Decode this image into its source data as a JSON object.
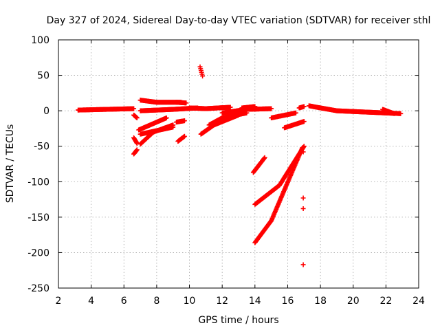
{
  "chart_data": {
    "type": "scatter",
    "title": "Day 327 of 2024, Sidereal Day-to-day VTEC variation (SDTVAR) for receiver sthl",
    "xlabel": "GPS time / hours",
    "ylabel": "SDTVAR / TECUs",
    "xlim": [
      2,
      24
    ],
    "ylim": [
      -250,
      100
    ],
    "xticks": [
      2,
      4,
      6,
      8,
      10,
      12,
      14,
      16,
      18,
      20,
      22,
      24
    ],
    "yticks": [
      -250,
      -200,
      -150,
      -100,
      -50,
      0,
      50,
      100
    ],
    "xtick_labels": [
      "2",
      "4",
      "6",
      "8",
      "10",
      "12",
      "14",
      "16",
      "18",
      "20",
      "22",
      "24"
    ],
    "ytick_labels": [
      "-250",
      "-200",
      "-150",
      "-100",
      "-50",
      "0",
      "50",
      "100"
    ],
    "grid": true,
    "marker": "plus",
    "color": "#ff0000",
    "series": [
      {
        "name": "arc-main-early",
        "segments": [
          [
            3.2,
            1,
            6.6,
            3
          ]
        ]
      },
      {
        "name": "arc-7-10a",
        "segments": [
          [
            7.0,
            15,
            8.0,
            12
          ],
          [
            8.0,
            12,
            9.5,
            12
          ]
        ]
      },
      {
        "name": "arc-7-10b",
        "segments": [
          [
            7.0,
            0,
            9.0,
            2
          ],
          [
            9.0,
            2,
            10.5,
            4
          ]
        ]
      },
      {
        "name": "arc-9-10",
        "segments": [
          [
            9.2,
            12,
            9.8,
            11
          ]
        ]
      },
      {
        "name": "arc-7-down1",
        "segments": [
          [
            6.9,
            -27,
            8.6,
            -10
          ]
        ]
      },
      {
        "name": "arc-7-down2",
        "segments": [
          [
            7.0,
            -33,
            9.0,
            -23
          ]
        ]
      },
      {
        "name": "arc-7-down3",
        "segments": [
          [
            7.0,
            -47,
            7.8,
            -30
          ],
          [
            7.8,
            -30,
            9.0,
            -20
          ]
        ]
      },
      {
        "name": "arc-6-low",
        "segments": [
          [
            6.6,
            -61,
            6.8,
            -55
          ]
        ]
      },
      {
        "name": "arc-6-mid",
        "segments": [
          [
            6.6,
            -38,
            6.8,
            -46
          ]
        ]
      },
      {
        "name": "arc-6-top",
        "segments": [
          [
            6.6,
            -6,
            6.8,
            -10
          ]
        ]
      },
      {
        "name": "arc-9-low",
        "segments": [
          [
            9.3,
            -43,
            9.7,
            -36
          ]
        ]
      },
      {
        "name": "arc-9-mid",
        "segments": [
          [
            9.2,
            -16,
            9.7,
            -14
          ]
        ]
      },
      {
        "name": "spike-10.7",
        "segments": [
          [
            10.65,
            62,
            10.8,
            49
          ]
        ]
      },
      {
        "name": "arc-10-12",
        "segments": [
          [
            10.0,
            4,
            11.0,
            3
          ],
          [
            11.0,
            3,
            12.5,
            5
          ]
        ]
      },
      {
        "name": "arc-11-13a",
        "segments": [
          [
            10.7,
            -33,
            11.5,
            -20
          ],
          [
            11.5,
            -20,
            13.0,
            -6
          ]
        ]
      },
      {
        "name": "arc-11-13b",
        "segments": [
          [
            11.2,
            -20,
            12.0,
            -10
          ],
          [
            12.0,
            -10,
            13.5,
            -3
          ]
        ]
      },
      {
        "name": "arc-12-15",
        "segments": [
          [
            12.0,
            -3,
            13.5,
            2
          ],
          [
            13.5,
            2,
            15.0,
            3
          ]
        ]
      },
      {
        "name": "arc-13-14",
        "segments": [
          [
            13.2,
            4,
            14.0,
            6
          ]
        ]
      },
      {
        "name": "arc-15-16",
        "segments": [
          [
            15.0,
            -10,
            16.5,
            -3
          ]
        ]
      },
      {
        "name": "arc-15-17",
        "segments": [
          [
            15.8,
            -24,
            17.0,
            -15
          ]
        ]
      },
      {
        "name": "arc-16.8",
        "segments": [
          [
            16.7,
            4,
            17.0,
            6
          ]
        ]
      },
      {
        "name": "arc-14-up",
        "segments": [
          [
            13.9,
            -87,
            14.6,
            -66
          ]
        ]
      },
      {
        "name": "arc-14-17a",
        "segments": [
          [
            14.0,
            -132,
            15.5,
            -105
          ],
          [
            15.5,
            -105,
            17.0,
            -50
          ]
        ]
      },
      {
        "name": "arc-14-17b",
        "segments": [
          [
            14.0,
            -186,
            15.0,
            -155
          ],
          [
            15.0,
            -155,
            16.9,
            -52
          ]
        ]
      },
      {
        "name": "isolated-17",
        "points": [
          [
            16.95,
            -58
          ],
          [
            16.95,
            -123
          ],
          [
            16.95,
            -138
          ],
          [
            16.95,
            -217
          ]
        ]
      },
      {
        "name": "arc-late",
        "segments": [
          [
            17.3,
            7,
            19.0,
            0
          ],
          [
            19.0,
            0,
            22.9,
            -4
          ]
        ]
      },
      {
        "name": "arc-22",
        "segments": [
          [
            21.8,
            2,
            22.5,
            -4
          ]
        ]
      }
    ]
  }
}
